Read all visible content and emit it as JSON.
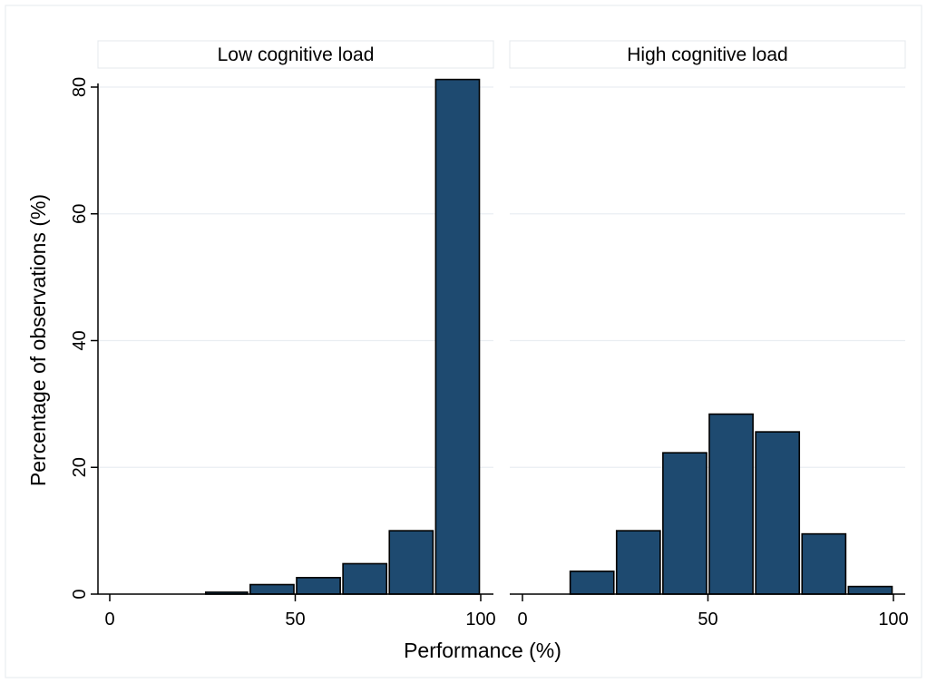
{
  "chart_data": {
    "type": "bar",
    "title": "",
    "xlabel": "Performance (%)",
    "ylabel": "Percentage of observations (%)",
    "xlim": [
      0,
      100
    ],
    "ylim": [
      0,
      80
    ],
    "x_ticks": [
      0,
      50,
      100
    ],
    "y_ticks": [
      0,
      20,
      40,
      60,
      80
    ],
    "grid": true,
    "bar_color": "#1e4a70",
    "bar_edge_color": "#000000",
    "panels": [
      {
        "label": "Low cognitive load",
        "bins": [
          {
            "x0": 25.5,
            "x1": 37.5,
            "value": 0.3
          },
          {
            "x0": 37.5,
            "x1": 50,
            "value": 1.5
          },
          {
            "x0": 50,
            "x1": 62.5,
            "value": 2.6
          },
          {
            "x0": 62.5,
            "x1": 75,
            "value": 4.8
          },
          {
            "x0": 75,
            "x1": 87.5,
            "value": 10.0
          },
          {
            "x0": 87.5,
            "x1": 100,
            "value": 81.2
          }
        ]
      },
      {
        "label": "High cognitive load",
        "bins": [
          {
            "x0": 12.5,
            "x1": 25,
            "value": 3.6
          },
          {
            "x0": 25,
            "x1": 37.5,
            "value": 10.0
          },
          {
            "x0": 37.5,
            "x1": 50,
            "value": 22.3
          },
          {
            "x0": 50,
            "x1": 62.5,
            "value": 28.4
          },
          {
            "x0": 62.5,
            "x1": 75,
            "value": 25.6
          },
          {
            "x0": 75,
            "x1": 87.5,
            "value": 9.5
          },
          {
            "x0": 87.5,
            "x1": 100,
            "value": 1.2
          }
        ]
      }
    ]
  }
}
